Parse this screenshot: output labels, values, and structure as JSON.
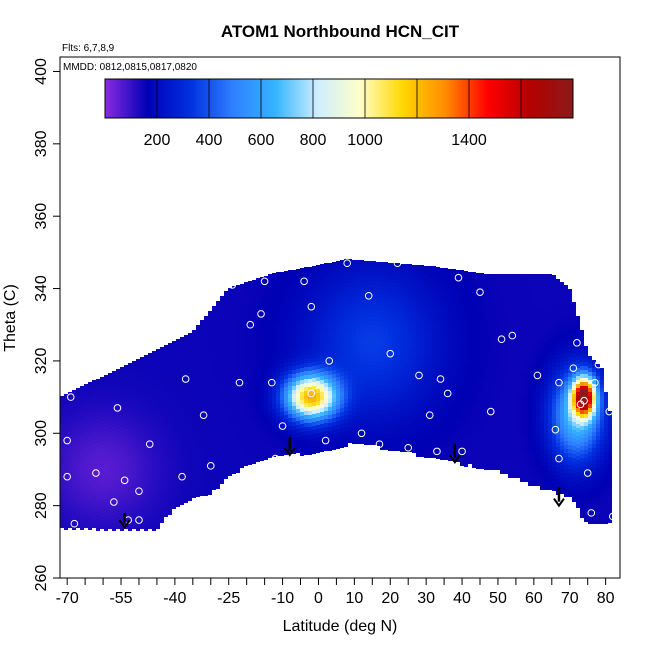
{
  "chart_data": {
    "type": "heatmap",
    "title": "ATOM1 Northbound HCN_CIT",
    "flights_note": "Flts: 6,7,8,9",
    "dates_note": "MMDD: 0812,0815,0817,0820",
    "xlabel": "Latitude (deg N)",
    "ylabel": "Theta (C)",
    "xlim": [
      -72,
      84
    ],
    "ylim": [
      260,
      404
    ],
    "x_ticks": [
      -70,
      -55,
      -40,
      -25,
      -10,
      0,
      10,
      20,
      30,
      40,
      50,
      60,
      70,
      80
    ],
    "x_tick_labels": [
      "-70",
      "-55",
      "-40",
      "-25",
      "-10",
      "0",
      "10",
      "20",
      "30",
      "40",
      "50",
      "60",
      "70",
      "80"
    ],
    "y_ticks": [
      260,
      280,
      300,
      320,
      340,
      360,
      380,
      400
    ],
    "y_tick_labels": [
      "260",
      "280",
      "300",
      "320",
      "340",
      "360",
      "380",
      "400"
    ],
    "colorbar": {
      "range": [
        0,
        1800
      ],
      "ticks": [
        200,
        400,
        600,
        800,
        1000,
        1400
      ],
      "tick_labels": [
        "200",
        "400",
        "600",
        "800",
        "1000",
        "1400"
      ],
      "colors": [
        "#8a2be2",
        "#0000b4",
        "#0030e0",
        "#2f7fff",
        "#34b4ff",
        "#cfeeff",
        "#ffffc8",
        "#ffd700",
        "#ff8c00",
        "#ff0000",
        "#b40000",
        "#8b1a1a"
      ]
    },
    "field": {
      "lower_boundary": [
        [
          -72,
          274
        ],
        [
          -45,
          274
        ],
        [
          -40,
          280
        ],
        [
          -30,
          284
        ],
        [
          -20,
          292
        ],
        [
          -10,
          294
        ],
        [
          5,
          296
        ],
        [
          10,
          298
        ],
        [
          20,
          296
        ],
        [
          30,
          294
        ],
        [
          40,
          292
        ],
        [
          50,
          290
        ],
        [
          60,
          286
        ],
        [
          70,
          283
        ],
        [
          72,
          280
        ],
        [
          74,
          276
        ],
        [
          80,
          276
        ]
      ],
      "upper_boundary": [
        [
          -72,
          310
        ],
        [
          -55,
          318
        ],
        [
          -35,
          328
        ],
        [
          -25,
          340
        ],
        [
          -13,
          344
        ],
        [
          -2,
          346
        ],
        [
          8,
          348
        ],
        [
          32,
          346
        ],
        [
          46,
          344
        ],
        [
          65,
          344
        ],
        [
          70,
          340
        ],
        [
          73,
          330
        ],
        [
          75,
          322
        ],
        [
          79,
          318
        ],
        [
          81,
          306
        ]
      ],
      "background_value": 150,
      "enhancements": [
        {
          "lat": -2,
          "theta": 310,
          "value": 1200,
          "radius_lat": 7,
          "radius_theta": 6
        },
        {
          "lat": 74,
          "theta": 310,
          "value": 1600,
          "radius_lat": 3,
          "radius_theta": 5
        },
        {
          "lat": 72,
          "theta": 305,
          "value": 700,
          "radius_lat": 7,
          "radius_theta": 12
        },
        {
          "lat": 15,
          "theta": 325,
          "value": 350,
          "radius_lat": 18,
          "radius_theta": 20
        },
        {
          "lat": -60,
          "theta": 290,
          "value": 60,
          "radius_lat": 15,
          "radius_theta": 15
        }
      ]
    },
    "sample_points": [
      [
        -69,
        310
      ],
      [
        -70,
        298
      ],
      [
        -70,
        288
      ],
      [
        -68,
        275
      ],
      [
        -62,
        289
      ],
      [
        -57,
        281
      ],
      [
        -53,
        276
      ],
      [
        -50,
        276
      ],
      [
        -54,
        287
      ],
      [
        -56,
        307
      ],
      [
        -47,
        297
      ],
      [
        -50,
        284
      ],
      [
        -38,
        288
      ],
      [
        -37,
        315
      ],
      [
        -32,
        305
      ],
      [
        -30,
        291
      ],
      [
        -22,
        314
      ],
      [
        -19,
        330
      ],
      [
        -15,
        342
      ],
      [
        -24,
        341
      ],
      [
        -16,
        333
      ],
      [
        -13,
        314
      ],
      [
        -12,
        293
      ],
      [
        -10,
        302
      ],
      [
        -2,
        311
      ],
      [
        -4,
        342
      ],
      [
        -2,
        335
      ],
      [
        2,
        298
      ],
      [
        3,
        320
      ],
      [
        12,
        300
      ],
      [
        8,
        347
      ],
      [
        14,
        338
      ],
      [
        17,
        297
      ],
      [
        20,
        322
      ],
      [
        22,
        347
      ],
      [
        25,
        296
      ],
      [
        28,
        316
      ],
      [
        31,
        305
      ],
      [
        33,
        295
      ],
      [
        34,
        315
      ],
      [
        36,
        311
      ],
      [
        39,
        343
      ],
      [
        40,
        295
      ],
      [
        45,
        339
      ],
      [
        48,
        306
      ],
      [
        51,
        326
      ],
      [
        54,
        327
      ],
      [
        61,
        316
      ],
      [
        66,
        301
      ],
      [
        67,
        293
      ],
      [
        67,
        314
      ],
      [
        69,
        343
      ],
      [
        71,
        318
      ],
      [
        72,
        325
      ],
      [
        73,
        308
      ],
      [
        74,
        309
      ],
      [
        75,
        289
      ],
      [
        76,
        278
      ],
      [
        77,
        314
      ],
      [
        78,
        319
      ],
      [
        81,
        306
      ],
      [
        82,
        277
      ]
    ],
    "arrows": [
      {
        "lat": -54,
        "theta_top": 278,
        "theta_bottom": 274
      },
      {
        "lat": -8,
        "theta_top": 299,
        "theta_bottom": 294
      },
      {
        "lat": 38,
        "theta_top": 297,
        "theta_bottom": 292
      },
      {
        "lat": 67,
        "theta_top": 285,
        "theta_bottom": 280
      }
    ]
  }
}
